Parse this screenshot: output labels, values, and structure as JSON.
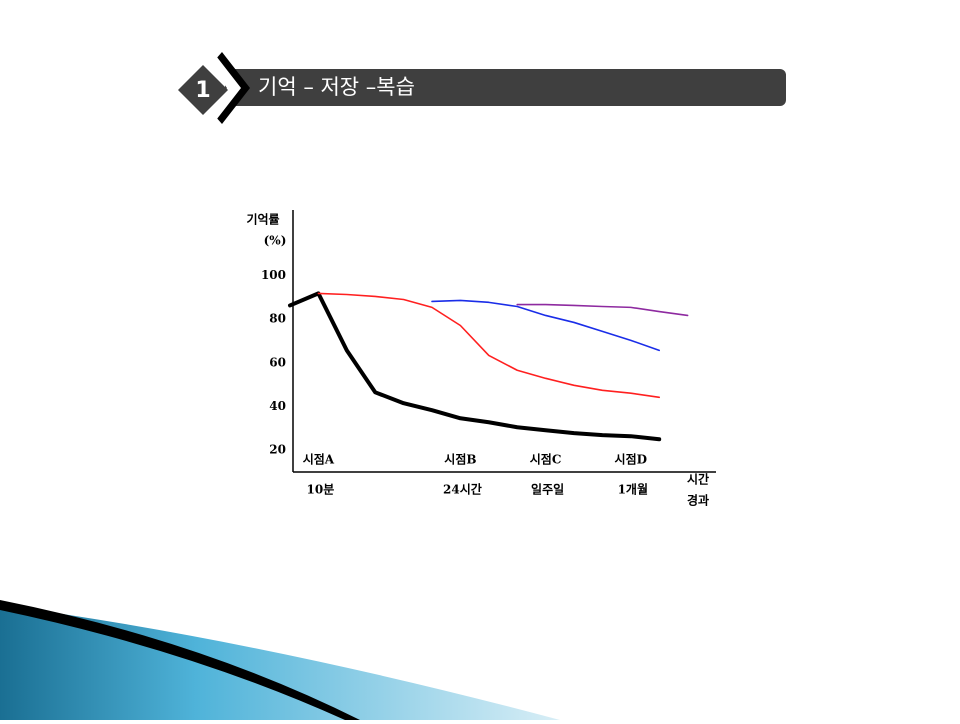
{
  "header": {
    "number": "1",
    "title": "기억 – 저장 –복습"
  },
  "chart_data": {
    "type": "line",
    "y_label": [
      "기억률",
      "(%)"
    ],
    "x_label": [
      "시간",
      "경과"
    ],
    "categories": [
      null,
      "시점A",
      null,
      null,
      null,
      null,
      "시점B",
      null,
      null,
      "시점C",
      null,
      null,
      "시점D",
      null,
      null
    ],
    "sublabels": [
      null,
      "10분",
      null,
      null,
      null,
      null,
      "24시간",
      null,
      null,
      "일주일",
      null,
      null,
      "1개월",
      null,
      null
    ],
    "ylim": [
      10,
      130
    ],
    "yticks": [
      20,
      40,
      60,
      80,
      100
    ],
    "series": [
      {
        "color": "#000000",
        "values": [
          86.3,
          91.8,
          65.7,
          46.5,
          41.5,
          38.3,
          34.6,
          32.8,
          30.5,
          29.1,
          27.8,
          26.9,
          26.4,
          25,
          null
        ]
      },
      {
        "color": "#ff2020",
        "values": [
          null,
          91.8,
          91.3,
          90.4,
          89,
          85.4,
          77.1,
          63.4,
          56.6,
          52.9,
          49.7,
          47.4,
          46.1,
          44.2,
          null
        ]
      },
      {
        "color": "#1a2de8",
        "values": [
          null,
          null,
          null,
          null,
          null,
          88.1,
          88.6,
          87.7,
          85.8,
          81.7,
          78.5,
          74.4,
          70.3,
          65.7,
          null
        ]
      },
      {
        "color": "#8e2aa0",
        "values": [
          null,
          null,
          null,
          null,
          null,
          null,
          null,
          null,
          86.7,
          86.7,
          86.3,
          85.8,
          85.4,
          83.5,
          81.7
        ]
      }
    ]
  }
}
